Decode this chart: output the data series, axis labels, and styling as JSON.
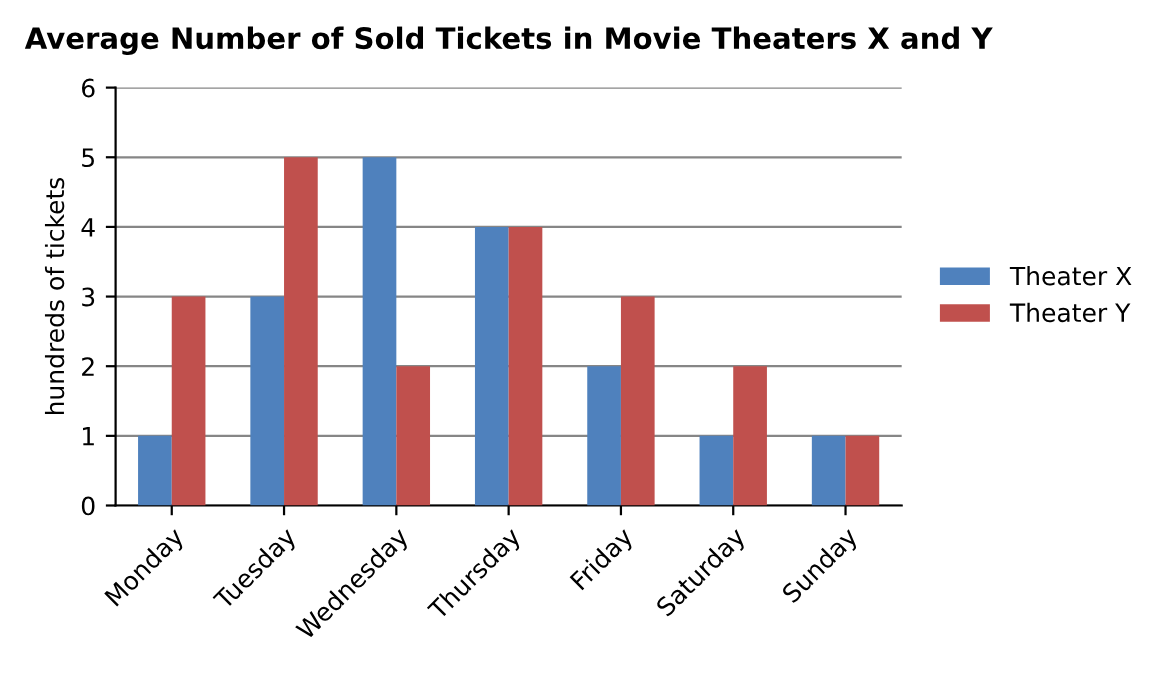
{
  "chart_data": {
    "type": "bar",
    "title": "Average Number of Sold Tickets in Movie Theaters X and Y",
    "ylabel": "hundreds of tickets",
    "categories": [
      "Monday",
      "Tuesday",
      "Wednesday",
      "Thursday",
      "Friday",
      "Saturday",
      "Sunday"
    ],
    "series": [
      {
        "name": "Theater X",
        "color": "#4f81bd",
        "values": [
          1,
          3,
          5,
          4,
          2,
          1,
          1
        ]
      },
      {
        "name": "Theater Y",
        "color": "#c0504d",
        "values": [
          3,
          5,
          2,
          4,
          3,
          2,
          1
        ]
      }
    ],
    "ylim": [
      0,
      6
    ],
    "yticks": [
      0,
      1,
      2,
      3,
      4,
      5,
      6
    ],
    "grid": "y",
    "legend": "right"
  }
}
